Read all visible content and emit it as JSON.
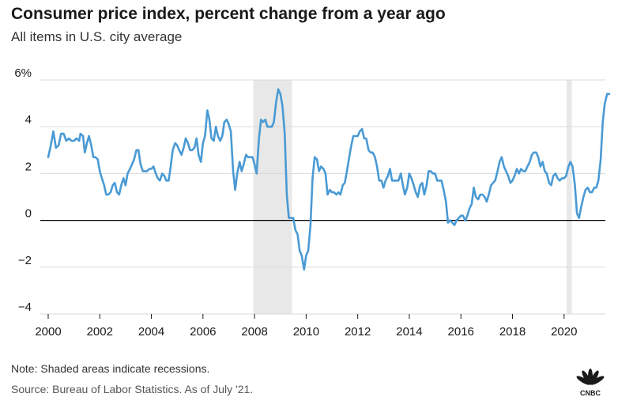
{
  "title": "Consumer price index, percent change from a year ago",
  "subtitle": "All items in U.S. city average",
  "note": "Note: Shaded areas indicate recessions.",
  "source": "Source: Bureau of Labor Statistics. As of July '21.",
  "logo_text": "CNBC",
  "colors": {
    "line": "#4a9ad4",
    "recession": "#e8e8e8",
    "grid": "#d9d9d9",
    "zero": "#000000",
    "text": "#1a1a1a"
  },
  "chart_data": {
    "type": "line",
    "title": "Consumer price index, percent change from a year ago",
    "subtitle": "All items in U.S. city average",
    "xlim": [
      2000,
      2021.6
    ],
    "ylim": [
      -4,
      6
    ],
    "yticks": [
      -4,
      -2,
      0,
      2,
      4,
      6
    ],
    "ytick_labels": [
      "−4",
      "−2",
      "0",
      "2",
      "4",
      "6%"
    ],
    "xticks": [
      2000,
      2002,
      2004,
      2006,
      2008,
      2010,
      2012,
      2014,
      2016,
      2018,
      2020
    ],
    "xtick_labels": [
      "2000",
      "2002",
      "2004",
      "2006",
      "2008",
      "2010",
      "2012",
      "2014",
      "2016",
      "2018",
      "2020"
    ],
    "grid": true,
    "recessions": [
      [
        2007.95,
        2009.45
      ],
      [
        2020.1,
        2020.3
      ]
    ],
    "series": [
      {
        "points": [
          [
            2000.0,
            2.7
          ],
          [
            2000.1,
            3.2
          ],
          [
            2000.2,
            3.8
          ],
          [
            2000.3,
            3.1
          ],
          [
            2000.4,
            3.2
          ],
          [
            2000.5,
            3.7
          ],
          [
            2000.6,
            3.7
          ],
          [
            2000.7,
            3.4
          ],
          [
            2000.8,
            3.5
          ],
          [
            2000.9,
            3.4
          ],
          [
            2001.0,
            3.4
          ],
          [
            2001.1,
            3.5
          ],
          [
            2001.2,
            3.4
          ],
          [
            2001.25,
            3.7
          ],
          [
            2001.35,
            3.6
          ],
          [
            2001.42,
            2.9
          ],
          [
            2001.5,
            3.3
          ],
          [
            2001.58,
            3.6
          ],
          [
            2001.67,
            3.2
          ],
          [
            2001.75,
            2.7
          ],
          [
            2001.83,
            2.7
          ],
          [
            2001.92,
            2.6
          ],
          [
            2002.0,
            2.1
          ],
          [
            2002.08,
            1.8
          ],
          [
            2002.17,
            1.5
          ],
          [
            2002.25,
            1.1
          ],
          [
            2002.33,
            1.1
          ],
          [
            2002.42,
            1.2
          ],
          [
            2002.5,
            1.5
          ],
          [
            2002.58,
            1.6
          ],
          [
            2002.67,
            1.2
          ],
          [
            2002.75,
            1.1
          ],
          [
            2002.83,
            1.5
          ],
          [
            2002.92,
            1.8
          ],
          [
            2003.0,
            1.5
          ],
          [
            2003.08,
            2.0
          ],
          [
            2003.17,
            2.2
          ],
          [
            2003.25,
            2.4
          ],
          [
            2003.33,
            2.6
          ],
          [
            2003.42,
            3.0
          ],
          [
            2003.5,
            3.0
          ],
          [
            2003.58,
            2.4
          ],
          [
            2003.67,
            2.1
          ],
          [
            2003.75,
            2.1
          ],
          [
            2003.83,
            2.1
          ],
          [
            2003.92,
            2.2
          ],
          [
            2004.0,
            2.2
          ],
          [
            2004.08,
            2.3
          ],
          [
            2004.17,
            2.0
          ],
          [
            2004.25,
            1.8
          ],
          [
            2004.33,
            1.7
          ],
          [
            2004.42,
            2.0
          ],
          [
            2004.5,
            1.9
          ],
          [
            2004.58,
            1.7
          ],
          [
            2004.67,
            1.7
          ],
          [
            2004.75,
            2.3
          ],
          [
            2004.83,
            3.0
          ],
          [
            2004.92,
            3.3
          ],
          [
            2005.0,
            3.2
          ],
          [
            2005.08,
            3.0
          ],
          [
            2005.17,
            2.8
          ],
          [
            2005.25,
            3.1
          ],
          [
            2005.33,
            3.5
          ],
          [
            2005.42,
            3.3
          ],
          [
            2005.5,
            3.0
          ],
          [
            2005.58,
            3.0
          ],
          [
            2005.67,
            3.1
          ],
          [
            2005.75,
            3.5
          ],
          [
            2005.83,
            2.8
          ],
          [
            2005.92,
            2.5
          ],
          [
            2006.0,
            3.3
          ],
          [
            2006.08,
            3.6
          ],
          [
            2006.17,
            4.7
          ],
          [
            2006.25,
            4.3
          ],
          [
            2006.33,
            3.5
          ],
          [
            2006.42,
            3.4
          ],
          [
            2006.5,
            4.0
          ],
          [
            2006.58,
            3.6
          ],
          [
            2006.67,
            3.4
          ],
          [
            2006.75,
            3.6
          ],
          [
            2006.83,
            4.2
          ],
          [
            2006.92,
            4.3
          ],
          [
            2007.0,
            4.1
          ],
          [
            2007.08,
            3.8
          ],
          [
            2007.17,
            2.1
          ],
          [
            2007.25,
            1.3
          ],
          [
            2007.33,
            2.0
          ],
          [
            2007.42,
            2.5
          ],
          [
            2007.5,
            2.1
          ],
          [
            2007.58,
            2.4
          ],
          [
            2007.67,
            2.8
          ],
          [
            2007.75,
            2.7
          ],
          [
            2007.83,
            2.7
          ],
          [
            2007.92,
            2.7
          ],
          [
            2008.0,
            2.4
          ],
          [
            2008.08,
            2.0
          ],
          [
            2008.17,
            3.5
          ],
          [
            2008.25,
            4.3
          ],
          [
            2008.33,
            4.2
          ],
          [
            2008.42,
            4.3
          ],
          [
            2008.5,
            4.0
          ],
          [
            2008.58,
            4.0
          ],
          [
            2008.67,
            4.0
          ],
          [
            2008.75,
            4.2
          ],
          [
            2008.83,
            5.0
          ],
          [
            2008.92,
            5.6
          ],
          [
            2009.0,
            5.4
          ],
          [
            2009.08,
            4.9
          ],
          [
            2009.17,
            3.7
          ],
          [
            2009.25,
            1.1
          ],
          [
            2009.33,
            0.1
          ],
          [
            2009.42,
            0.1
          ],
          [
            2009.5,
            0.1
          ],
          [
            2009.58,
            -0.4
          ],
          [
            2009.67,
            -0.6
          ],
          [
            2009.75,
            -1.3
          ],
          [
            2009.83,
            -1.5
          ],
          [
            2009.92,
            -2.1
          ],
          [
            2010.0,
            -1.5
          ],
          [
            2010.08,
            -1.3
          ],
          [
            2010.17,
            -0.2
          ],
          [
            2010.25,
            1.8
          ],
          [
            2010.33,
            2.7
          ],
          [
            2010.42,
            2.6
          ],
          [
            2010.5,
            2.1
          ],
          [
            2010.58,
            2.3
          ],
          [
            2010.67,
            2.2
          ],
          [
            2010.75,
            2.0
          ],
          [
            2010.83,
            1.1
          ],
          [
            2010.92,
            1.3
          ],
          [
            2011.0,
            1.2
          ],
          [
            2011.08,
            1.2
          ],
          [
            2011.17,
            1.1
          ],
          [
            2011.25,
            1.2
          ],
          [
            2011.33,
            1.1
          ],
          [
            2011.42,
            1.5
          ],
          [
            2011.5,
            1.6
          ],
          [
            2011.58,
            2.1
          ],
          [
            2011.67,
            2.7
          ],
          [
            2011.75,
            3.2
          ],
          [
            2011.83,
            3.6
          ],
          [
            2011.92,
            3.6
          ],
          [
            2012.0,
            3.6
          ],
          [
            2012.08,
            3.8
          ],
          [
            2012.17,
            3.9
          ],
          [
            2012.25,
            3.5
          ],
          [
            2012.33,
            3.5
          ],
          [
            2012.42,
            3.0
          ],
          [
            2012.5,
            2.9
          ],
          [
            2012.58,
            2.9
          ],
          [
            2012.67,
            2.7
          ],
          [
            2012.75,
            2.3
          ],
          [
            2012.83,
            1.7
          ],
          [
            2012.92,
            1.7
          ],
          [
            2013.0,
            1.4
          ],
          [
            2013.08,
            1.7
          ],
          [
            2013.17,
            1.9
          ],
          [
            2013.25,
            2.2
          ],
          [
            2013.33,
            1.7
          ],
          [
            2013.42,
            1.7
          ],
          [
            2013.5,
            1.7
          ],
          [
            2013.58,
            1.7
          ],
          [
            2013.67,
            2.0
          ],
          [
            2013.75,
            1.5
          ],
          [
            2013.83,
            1.1
          ],
          [
            2013.92,
            1.4
          ],
          [
            2014.0,
            2.0
          ],
          [
            2014.08,
            1.8
          ],
          [
            2014.17,
            1.5
          ],
          [
            2014.25,
            1.2
          ],
          [
            2014.33,
            1.0
          ],
          [
            2014.42,
            1.5
          ],
          [
            2014.5,
            1.6
          ],
          [
            2014.58,
            1.1
          ],
          [
            2014.67,
            1.5
          ],
          [
            2014.75,
            2.1
          ],
          [
            2014.83,
            2.1
          ],
          [
            2014.92,
            2.0
          ],
          [
            2015.0,
            2.0
          ],
          [
            2015.08,
            1.7
          ],
          [
            2015.17,
            1.7
          ],
          [
            2015.25,
            1.7
          ],
          [
            2015.33,
            1.3
          ],
          [
            2015.42,
            0.8
          ],
          [
            2015.5,
            -0.1
          ],
          [
            2015.58,
            0.0
          ],
          [
            2015.67,
            -0.1
          ],
          [
            2015.75,
            -0.2
          ],
          [
            2015.83,
            0.0
          ],
          [
            2015.92,
            0.1
          ],
          [
            2016.0,
            0.2
          ],
          [
            2016.08,
            0.2
          ],
          [
            2016.17,
            0.0
          ],
          [
            2016.25,
            0.2
          ],
          [
            2016.33,
            0.5
          ],
          [
            2016.42,
            0.7
          ],
          [
            2016.5,
            1.4
          ],
          [
            2016.58,
            1.0
          ],
          [
            2016.67,
            0.9
          ],
          [
            2016.75,
            1.1
          ],
          [
            2016.83,
            1.1
          ],
          [
            2016.92,
            1.0
          ],
          [
            2017.0,
            0.8
          ],
          [
            2017.08,
            1.1
          ],
          [
            2017.17,
            1.5
          ],
          [
            2017.25,
            1.6
          ],
          [
            2017.33,
            1.7
          ],
          [
            2017.42,
            2.1
          ],
          [
            2017.5,
            2.5
          ],
          [
            2017.58,
            2.7
          ],
          [
            2017.67,
            2.3
          ],
          [
            2017.75,
            2.1
          ],
          [
            2017.83,
            1.9
          ],
          [
            2017.92,
            1.6
          ],
          [
            2018.0,
            1.7
          ],
          [
            2018.08,
            1.9
          ],
          [
            2018.17,
            2.2
          ],
          [
            2018.25,
            2.0
          ],
          [
            2018.33,
            2.2
          ],
          [
            2018.42,
            2.1
          ],
          [
            2018.5,
            2.1
          ],
          [
            2018.58,
            2.3
          ],
          [
            2018.67,
            2.5
          ],
          [
            2018.75,
            2.8
          ],
          [
            2018.83,
            2.9
          ],
          [
            2018.92,
            2.9
          ],
          [
            2019.0,
            2.7
          ],
          [
            2019.08,
            2.3
          ],
          [
            2019.17,
            2.5
          ],
          [
            2019.25,
            2.1
          ],
          [
            2019.33,
            2.0
          ],
          [
            2019.42,
            1.6
          ],
          [
            2019.5,
            1.5
          ],
          [
            2019.58,
            1.9
          ],
          [
            2019.67,
            2.0
          ],
          [
            2019.75,
            1.8
          ],
          [
            2019.83,
            1.7
          ],
          [
            2019.92,
            1.8
          ],
          [
            2020.0,
            1.8
          ],
          [
            2020.08,
            1.9
          ],
          [
            2020.17,
            2.3
          ],
          [
            2020.25,
            2.5
          ],
          [
            2020.33,
            2.3
          ],
          [
            2020.42,
            1.5
          ],
          [
            2020.5,
            0.3
          ],
          [
            2020.58,
            0.1
          ],
          [
            2020.67,
            0.6
          ],
          [
            2020.75,
            1.0
          ],
          [
            2020.83,
            1.3
          ],
          [
            2020.92,
            1.4
          ],
          [
            2021.0,
            1.2
          ],
          [
            2021.08,
            1.2
          ],
          [
            2021.17,
            1.4
          ],
          [
            2021.25,
            1.4
          ],
          [
            2021.33,
            1.7
          ],
          [
            2021.42,
            2.6
          ],
          [
            2021.5,
            4.2
          ],
          [
            2021.58,
            5.0
          ],
          [
            2021.67,
            5.4
          ],
          [
            2021.75,
            5.4
          ]
        ]
      }
    ]
  }
}
